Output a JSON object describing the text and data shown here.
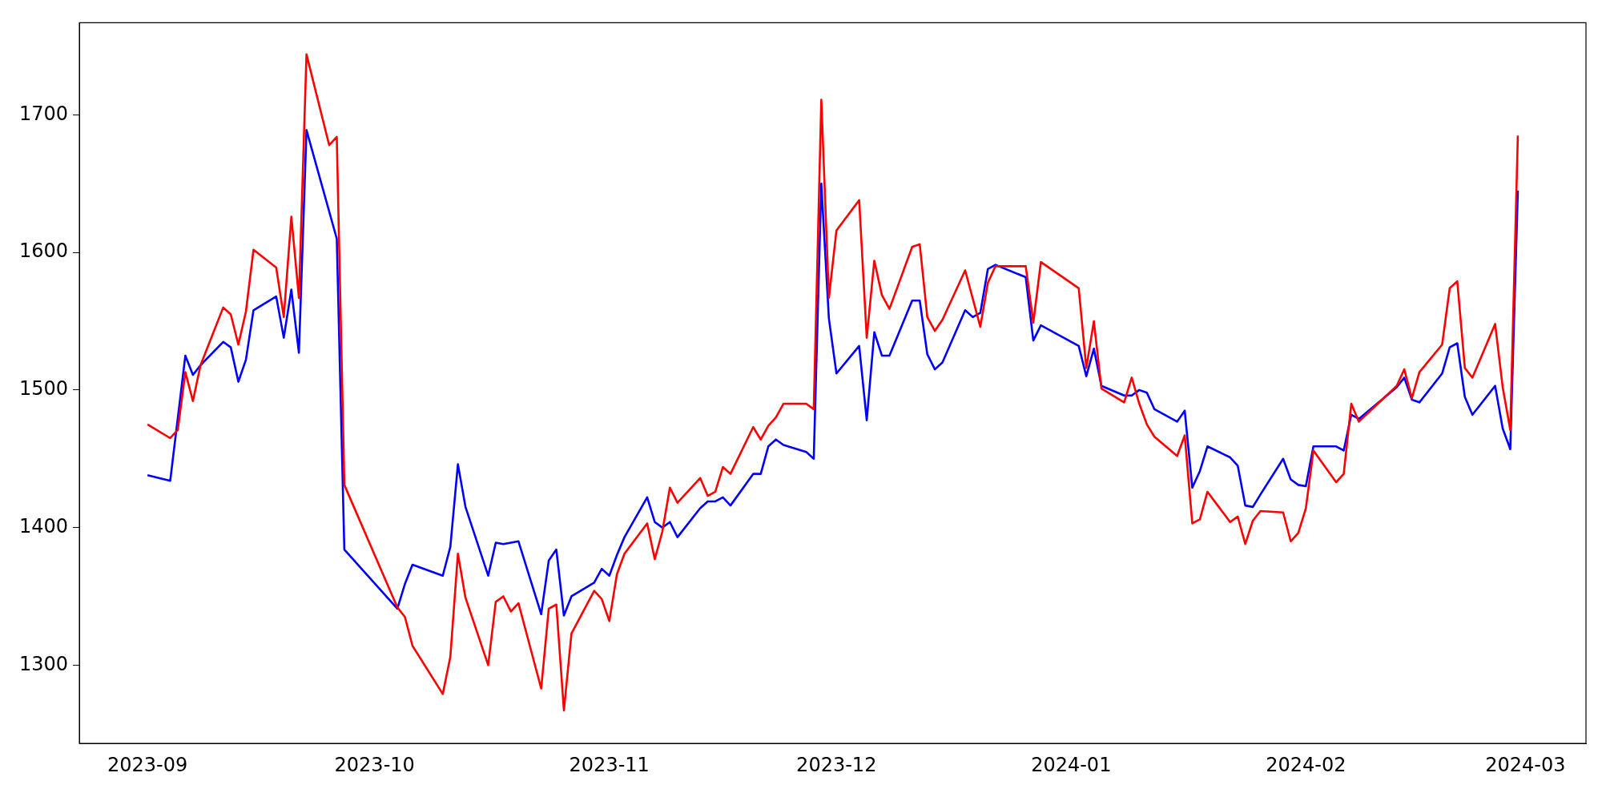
{
  "chart_data": {
    "type": "line",
    "legend": false,
    "grid": false,
    "marker": "none",
    "line_style": "solid",
    "xlim": [
      "2023-08-23",
      "2024-03-09"
    ],
    "xticks": [
      {
        "value": "2023-09-01",
        "label": "2023-09"
      },
      {
        "value": "2023-10-01",
        "label": "2023-10"
      },
      {
        "value": "2023-11-01",
        "label": "2023-11"
      },
      {
        "value": "2023-12-01",
        "label": "2023-12"
      },
      {
        "value": "2024-01-01",
        "label": "2024-01"
      },
      {
        "value": "2024-02-01",
        "label": "2024-02"
      },
      {
        "value": "2024-03-01",
        "label": "2024-03"
      }
    ],
    "ylim": [
      1243,
      1767
    ],
    "yticks": [
      1300,
      1400,
      1500,
      1600,
      1700
    ],
    "series": [
      {
        "color": "#ff0000",
        "x": [
          "2023-09-01",
          "2023-09-04",
          "2023-09-05",
          "2023-09-06",
          "2023-09-07",
          "2023-09-08",
          "2023-09-11",
          "2023-09-12",
          "2023-09-13",
          "2023-09-14",
          "2023-09-15",
          "2023-09-18",
          "2023-09-19",
          "2023-09-20",
          "2023-09-21",
          "2023-09-22",
          "2023-09-25",
          "2023-09-26",
          "2023-09-27",
          "2023-10-04",
          "2023-10-05",
          "2023-10-06",
          "2023-10-10",
          "2023-10-11",
          "2023-10-12",
          "2023-10-13",
          "2023-10-16",
          "2023-10-17",
          "2023-10-18",
          "2023-10-19",
          "2023-10-20",
          "2023-10-23",
          "2023-10-24",
          "2023-10-25",
          "2023-10-26",
          "2023-10-27",
          "2023-10-30",
          "2023-10-31",
          "2023-11-01",
          "2023-11-02",
          "2023-11-03",
          "2023-11-06",
          "2023-11-07",
          "2023-11-08",
          "2023-11-09",
          "2023-11-10",
          "2023-11-13",
          "2023-11-14",
          "2023-11-15",
          "2023-11-16",
          "2023-11-17",
          "2023-11-20",
          "2023-11-21",
          "2023-11-22",
          "2023-11-23",
          "2023-11-24",
          "2023-11-27",
          "2023-11-28",
          "2023-11-29",
          "2023-11-30",
          "2023-12-01",
          "2023-12-04",
          "2023-12-05",
          "2023-12-06",
          "2023-12-07",
          "2023-12-08",
          "2023-12-11",
          "2023-12-12",
          "2023-12-13",
          "2023-12-14",
          "2023-12-15",
          "2023-12-18",
          "2023-12-20",
          "2023-12-21",
          "2023-12-22",
          "2023-12-26",
          "2023-12-27",
          "2023-12-28",
          "2024-01-02",
          "2024-01-03",
          "2024-01-04",
          "2024-01-05",
          "2024-01-08",
          "2024-01-09",
          "2024-01-10",
          "2024-01-11",
          "2024-01-12",
          "2024-01-15",
          "2024-01-16",
          "2024-01-17",
          "2024-01-18",
          "2024-01-19",
          "2024-01-22",
          "2024-01-23",
          "2024-01-24",
          "2024-01-25",
          "2024-01-26",
          "2024-01-29",
          "2024-01-30",
          "2024-01-31",
          "2024-02-01",
          "2024-02-02",
          "2024-02-05",
          "2024-02-06",
          "2024-02-07",
          "2024-02-08",
          "2024-02-13",
          "2024-02-14",
          "2024-02-15",
          "2024-02-16",
          "2024-02-19",
          "2024-02-20",
          "2024-02-21",
          "2024-02-22",
          "2024-02-23",
          "2024-02-26",
          "2024-02-27",
          "2024-02-28",
          "2024-02-29"
        ],
        "values": [
          1475,
          1465,
          1471,
          1513,
          1492,
          1518,
          1560,
          1555,
          1533,
          1557,
          1602,
          1589,
          1553,
          1626,
          1567,
          1744,
          1678,
          1684,
          1431,
          1342,
          1335,
          1314,
          1279,
          1306,
          1381,
          1349,
          1300,
          1346,
          1350,
          1339,
          1345,
          1283,
          1341,
          1344,
          1267,
          1323,
          1354,
          1348,
          1332,
          1366,
          1381,
          1403,
          1377,
          1397,
          1429,
          1418,
          1436,
          1423,
          1426,
          1444,
          1439,
          1473,
          1464,
          1474,
          1480,
          1490,
          1490,
          1486,
          1711,
          1567,
          1616,
          1638,
          1538,
          1594,
          1569,
          1559,
          1604,
          1606,
          1553,
          1543,
          1551,
          1587,
          1546,
          1578,
          1590,
          1590,
          1549,
          1593,
          1574,
          1516,
          1550,
          1501,
          1491,
          1509,
          1490,
          1475,
          1466,
          1452,
          1467,
          1403,
          1406,
          1426,
          1404,
          1408,
          1388,
          1405,
          1412,
          1411,
          1390,
          1396,
          1414,
          1456,
          1433,
          1439,
          1490,
          1477,
          1503,
          1515,
          1494,
          1513,
          1533,
          1574,
          1579,
          1516,
          1509,
          1548,
          1502,
          1471,
          1685
        ]
      },
      {
        "color": "#0000ff",
        "x": [
          "2023-09-01",
          "2023-09-04",
          "2023-09-06",
          "2023-09-07",
          "2023-09-08",
          "2023-09-11",
          "2023-09-12",
          "2023-09-13",
          "2023-09-14",
          "2023-09-15",
          "2023-09-18",
          "2023-09-19",
          "2023-09-20",
          "2023-09-21",
          "2023-09-22",
          "2023-09-26",
          "2023-09-27",
          "2023-10-04",
          "2023-10-05",
          "2023-10-06",
          "2023-10-10",
          "2023-10-11",
          "2023-10-12",
          "2023-10-13",
          "2023-10-16",
          "2023-10-17",
          "2023-10-18",
          "2023-10-20",
          "2023-10-23",
          "2023-10-24",
          "2023-10-25",
          "2023-10-26",
          "2023-10-27",
          "2023-10-30",
          "2023-10-31",
          "2023-11-01",
          "2023-11-02",
          "2023-11-03",
          "2023-11-06",
          "2023-11-07",
          "2023-11-08",
          "2023-11-09",
          "2023-11-10",
          "2023-11-13",
          "2023-11-14",
          "2023-11-15",
          "2023-11-16",
          "2023-11-17",
          "2023-11-20",
          "2023-11-21",
          "2023-11-22",
          "2023-11-23",
          "2023-11-24",
          "2023-11-27",
          "2023-11-28",
          "2023-11-29",
          "2023-11-30",
          "2023-12-01",
          "2023-12-04",
          "2023-12-05",
          "2023-12-06",
          "2023-12-07",
          "2023-12-08",
          "2023-12-11",
          "2023-12-12",
          "2023-12-13",
          "2023-12-14",
          "2023-12-15",
          "2023-12-18",
          "2023-12-19",
          "2023-12-20",
          "2023-12-21",
          "2023-12-22",
          "2023-12-26",
          "2023-12-27",
          "2023-12-28",
          "2024-01-02",
          "2024-01-03",
          "2024-01-04",
          "2024-01-05",
          "2024-01-08",
          "2024-01-09",
          "2024-01-10",
          "2024-01-11",
          "2024-01-12",
          "2024-01-15",
          "2024-01-16",
          "2024-01-17",
          "2024-01-18",
          "2024-01-19",
          "2024-01-22",
          "2024-01-23",
          "2024-01-24",
          "2024-01-25",
          "2024-01-26",
          "2024-01-29",
          "2024-01-30",
          "2024-01-31",
          "2024-02-01",
          "2024-02-02",
          "2024-02-05",
          "2024-02-06",
          "2024-02-07",
          "2024-02-08",
          "2024-02-13",
          "2024-02-14",
          "2024-02-15",
          "2024-02-16",
          "2024-02-19",
          "2024-02-20",
          "2024-02-21",
          "2024-02-22",
          "2024-02-23",
          "2024-02-26",
          "2024-02-27",
          "2024-02-28",
          "2024-02-29"
        ],
        "values": [
          1438,
          1434,
          1525,
          1511,
          1518,
          1535,
          1531,
          1506,
          1522,
          1558,
          1568,
          1538,
          1573,
          1527,
          1689,
          1610,
          1384,
          1341,
          1359,
          1373,
          1365,
          1386,
          1446,
          1415,
          1365,
          1389,
          1388,
          1390,
          1337,
          1376,
          1384,
          1336,
          1350,
          1360,
          1370,
          1365,
          1380,
          1393,
          1422,
          1404,
          1400,
          1404,
          1393,
          1414,
          1419,
          1419,
          1422,
          1416,
          1439,
          1439,
          1459,
          1464,
          1460,
          1455,
          1450,
          1650,
          1552,
          1512,
          1532,
          1478,
          1542,
          1525,
          1525,
          1565,
          1565,
          1526,
          1515,
          1520,
          1558,
          1553,
          1556,
          1588,
          1591,
          1582,
          1536,
          1547,
          1532,
          1510,
          1530,
          1503,
          1496,
          1496,
          1500,
          1498,
          1486,
          1477,
          1485,
          1429,
          1441,
          1459,
          1451,
          1445,
          1416,
          1415,
          1424,
          1450,
          1435,
          1431,
          1430,
          1459,
          1459,
          1456,
          1482,
          1479,
          1502,
          1509,
          1493,
          1491,
          1512,
          1531,
          1534,
          1495,
          1482,
          1503,
          1472,
          1457,
          1645
        ]
      }
    ]
  }
}
